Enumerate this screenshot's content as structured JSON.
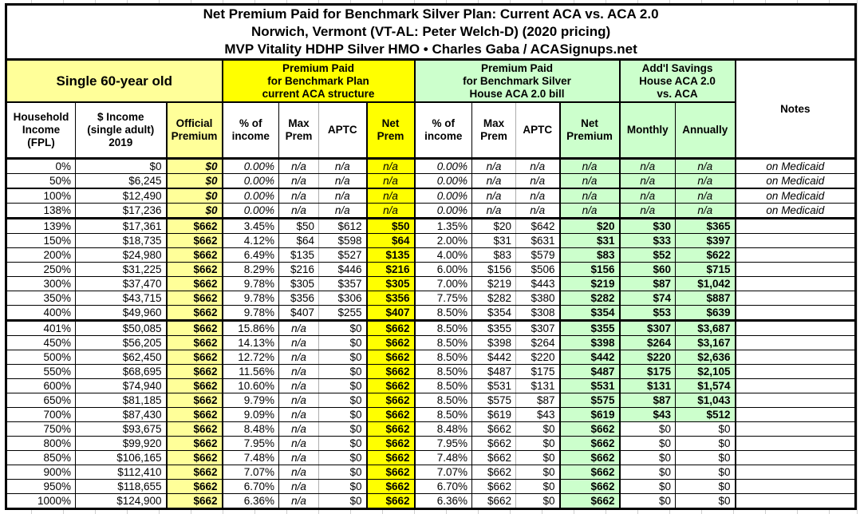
{
  "title": {
    "line1": "Net Premium Paid for Benchmark Silver Plan: Current ACA vs. ACA 2.0",
    "line2": "Norwich, Vermont (VT-AL: Peter Welch-D) (2020 pricing)",
    "line3": "MVP Vitality HDHP Silver HMO • Charles Gaba / ACASignups.net"
  },
  "groups": {
    "subject": "Single 60-year old",
    "aca": "Premium Paid\nfor Benchmark Plan\ncurrent ACA structure",
    "aca2": "Premium Paid\nfor Benchmark Silver\nHouse ACA 2.0 bill",
    "savings": "Add'l Savings\nHouse ACA 2.0\nvs. ACA",
    "notes": "Notes"
  },
  "columns": [
    "Household\nIncome\n(FPL)",
    "$ Income\n(single adult)\n2019",
    "Official\nPremium",
    "% of\nincome",
    "Max\nPrem",
    "APTC",
    "Net\nPrem",
    "% of\nincome",
    "Max\nPrem",
    "APTC",
    "Net\nPremium",
    "Monthly",
    "Annually"
  ],
  "colors": {
    "light_yellow": "#FFFF99",
    "bright_yellow": "#FFFF00",
    "light_green": "#CCFFCC",
    "border_black": "#000000"
  },
  "rows": [
    {
      "cells": [
        "0%",
        "$0",
        "$0",
        "0.00%",
        "n/a",
        "n/a",
        "n/a",
        "0.00%",
        "n/a",
        "n/a",
        "n/a",
        "n/a",
        "n/a",
        "on Medicaid"
      ],
      "medicaid": true,
      "no_savings": false,
      "divider": "1"
    },
    {
      "cells": [
        "50%",
        "$6,245",
        "$0",
        "0.00%",
        "n/a",
        "n/a",
        "n/a",
        "0.00%",
        "n/a",
        "n/a",
        "n/a",
        "n/a",
        "n/a",
        "on Medicaid"
      ],
      "medicaid": true,
      "no_savings": false,
      "divider": "2"
    },
    {
      "cells": [
        "100%",
        "$12,490",
        "$0",
        "0.00%",
        "n/a",
        "n/a",
        "n/a",
        "0.00%",
        "n/a",
        "n/a",
        "n/a",
        "n/a",
        "n/a",
        "on Medicaid"
      ],
      "medicaid": true,
      "no_savings": false,
      "divider": "1"
    },
    {
      "cells": [
        "138%",
        "$17,236",
        "$0",
        "0.00%",
        "n/a",
        "n/a",
        "n/a",
        "0.00%",
        "n/a",
        "n/a",
        "n/a",
        "n/a",
        "n/a",
        "on Medicaid"
      ],
      "medicaid": true,
      "no_savings": false,
      "divider": "3"
    },
    {
      "cells": [
        "139%",
        "$17,361",
        "$662",
        "3.45%",
        "$50",
        "$612",
        "$50",
        "1.35%",
        "$20",
        "$642",
        "$20",
        "$30",
        "$365",
        ""
      ],
      "medicaid": false,
      "no_savings": false,
      "divider": "1"
    },
    {
      "cells": [
        "150%",
        "$18,735",
        "$662",
        "4.12%",
        "$64",
        "$598",
        "$64",
        "2.00%",
        "$31",
        "$631",
        "$31",
        "$33",
        "$397",
        ""
      ],
      "medicaid": false,
      "no_savings": false,
      "divider": "1"
    },
    {
      "cells": [
        "200%",
        "$24,980",
        "$662",
        "6.49%",
        "$135",
        "$527",
        "$135",
        "4.00%",
        "$83",
        "$579",
        "$83",
        "$52",
        "$622",
        ""
      ],
      "medicaid": false,
      "no_savings": false,
      "divider": "1"
    },
    {
      "cells": [
        "250%",
        "$31,225",
        "$662",
        "8.29%",
        "$216",
        "$446",
        "$216",
        "6.00%",
        "$156",
        "$506",
        "$156",
        "$60",
        "$715",
        ""
      ],
      "medicaid": false,
      "no_savings": false,
      "divider": "1"
    },
    {
      "cells": [
        "300%",
        "$37,470",
        "$662",
        "9.78%",
        "$305",
        "$357",
        "$305",
        "7.00%",
        "$219",
        "$443",
        "$219",
        "$87",
        "$1,042",
        ""
      ],
      "medicaid": false,
      "no_savings": false,
      "divider": "1"
    },
    {
      "cells": [
        "350%",
        "$43,715",
        "$662",
        "9.78%",
        "$356",
        "$306",
        "$356",
        "7.75%",
        "$282",
        "$380",
        "$282",
        "$74",
        "$887",
        ""
      ],
      "medicaid": false,
      "no_savings": false,
      "divider": "1"
    },
    {
      "cells": [
        "400%",
        "$49,960",
        "$662",
        "9.78%",
        "$407",
        "$255",
        "$407",
        "8.50%",
        "$354",
        "$308",
        "$354",
        "$53",
        "$639",
        ""
      ],
      "medicaid": false,
      "no_savings": false,
      "divider": "3"
    },
    {
      "cells": [
        "401%",
        "$50,085",
        "$662",
        "15.86%",
        "n/a",
        "$0",
        "$662",
        "8.50%",
        "$355",
        "$307",
        "$355",
        "$307",
        "$3,687",
        ""
      ],
      "medicaid": false,
      "no_savings": false,
      "divider": "1"
    },
    {
      "cells": [
        "450%",
        "$56,205",
        "$662",
        "14.13%",
        "n/a",
        "$0",
        "$662",
        "8.50%",
        "$398",
        "$264",
        "$398",
        "$264",
        "$3,167",
        ""
      ],
      "medicaid": false,
      "no_savings": false,
      "divider": "1"
    },
    {
      "cells": [
        "500%",
        "$62,450",
        "$662",
        "12.72%",
        "n/a",
        "$0",
        "$662",
        "8.50%",
        "$442",
        "$220",
        "$442",
        "$220",
        "$2,636",
        ""
      ],
      "medicaid": false,
      "no_savings": false,
      "divider": "1"
    },
    {
      "cells": [
        "550%",
        "$68,695",
        "$662",
        "11.56%",
        "n/a",
        "$0",
        "$662",
        "8.50%",
        "$487",
        "$175",
        "$487",
        "$175",
        "$2,105",
        ""
      ],
      "medicaid": false,
      "no_savings": false,
      "divider": "1"
    },
    {
      "cells": [
        "600%",
        "$74,940",
        "$662",
        "10.60%",
        "n/a",
        "$0",
        "$662",
        "8.50%",
        "$531",
        "$131",
        "$531",
        "$131",
        "$1,574",
        ""
      ],
      "medicaid": false,
      "no_savings": false,
      "divider": "1"
    },
    {
      "cells": [
        "650%",
        "$81,185",
        "$662",
        "9.79%",
        "n/a",
        "$0",
        "$662",
        "8.50%",
        "$575",
        "$87",
        "$575",
        "$87",
        "$1,043",
        ""
      ],
      "medicaid": false,
      "no_savings": false,
      "divider": "1"
    },
    {
      "cells": [
        "700%",
        "$87,430",
        "$662",
        "9.09%",
        "n/a",
        "$0",
        "$662",
        "8.50%",
        "$619",
        "$43",
        "$619",
        "$43",
        "$512",
        ""
      ],
      "medicaid": false,
      "no_savings": false,
      "divider": "1"
    },
    {
      "cells": [
        "750%",
        "$93,675",
        "$662",
        "8.48%",
        "n/a",
        "$0",
        "$662",
        "8.48%",
        "$662",
        "$0",
        "$662",
        "$0",
        "$0",
        ""
      ],
      "medicaid": false,
      "no_savings": true,
      "divider": "1"
    },
    {
      "cells": [
        "800%",
        "$99,920",
        "$662",
        "7.95%",
        "n/a",
        "$0",
        "$662",
        "7.95%",
        "$662",
        "$0",
        "$662",
        "$0",
        "$0",
        ""
      ],
      "medicaid": false,
      "no_savings": true,
      "divider": "1"
    },
    {
      "cells": [
        "850%",
        "$106,165",
        "$662",
        "7.48%",
        "n/a",
        "$0",
        "$662",
        "7.48%",
        "$662",
        "$0",
        "$662",
        "$0",
        "$0",
        ""
      ],
      "medicaid": false,
      "no_savings": true,
      "divider": "1"
    },
    {
      "cells": [
        "900%",
        "$112,410",
        "$662",
        "7.07%",
        "n/a",
        "$0",
        "$662",
        "7.07%",
        "$662",
        "$0",
        "$662",
        "$0",
        "$0",
        ""
      ],
      "medicaid": false,
      "no_savings": true,
      "divider": "1"
    },
    {
      "cells": [
        "950%",
        "$118,655",
        "$662",
        "6.70%",
        "n/a",
        "$0",
        "$662",
        "6.70%",
        "$662",
        "$0",
        "$662",
        "$0",
        "$0",
        ""
      ],
      "medicaid": false,
      "no_savings": true,
      "divider": "1"
    },
    {
      "cells": [
        "1000%",
        "$124,900",
        "$662",
        "6.36%",
        "n/a",
        "$0",
        "$662",
        "6.36%",
        "$662",
        "$0",
        "$662",
        "$0",
        "$0",
        ""
      ],
      "medicaid": false,
      "no_savings": true,
      "divider": "1"
    }
  ]
}
